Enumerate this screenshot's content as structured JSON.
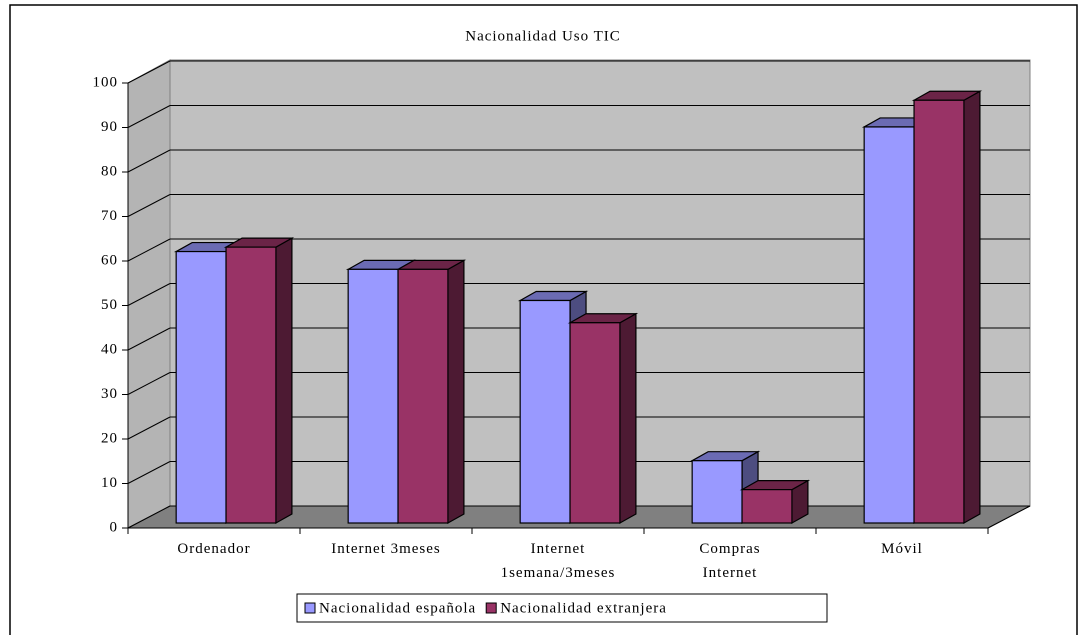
{
  "chart_data": {
    "type": "bar3d",
    "title": "Nacionalidad Uso TIC",
    "categories": [
      [
        "Ordenador"
      ],
      [
        "Internet 3meses"
      ],
      [
        "Internet",
        "1semana/3meses"
      ],
      [
        "Compras",
        "Internet"
      ],
      [
        "Móvil"
      ]
    ],
    "series": [
      {
        "name": "Nacionalidad española",
        "color": "#9999ff",
        "values": [
          61,
          57,
          50,
          14,
          89
        ]
      },
      {
        "name": "Nacionalidad extranjera",
        "color": "#993366",
        "values": [
          62,
          57,
          45,
          7.5,
          95
        ]
      }
    ],
    "ylim": [
      0,
      100
    ],
    "yticks": [
      0,
      10,
      20,
      30,
      40,
      50,
      60,
      70,
      80,
      90,
      100
    ],
    "grid": true,
    "legend": "bottom"
  }
}
